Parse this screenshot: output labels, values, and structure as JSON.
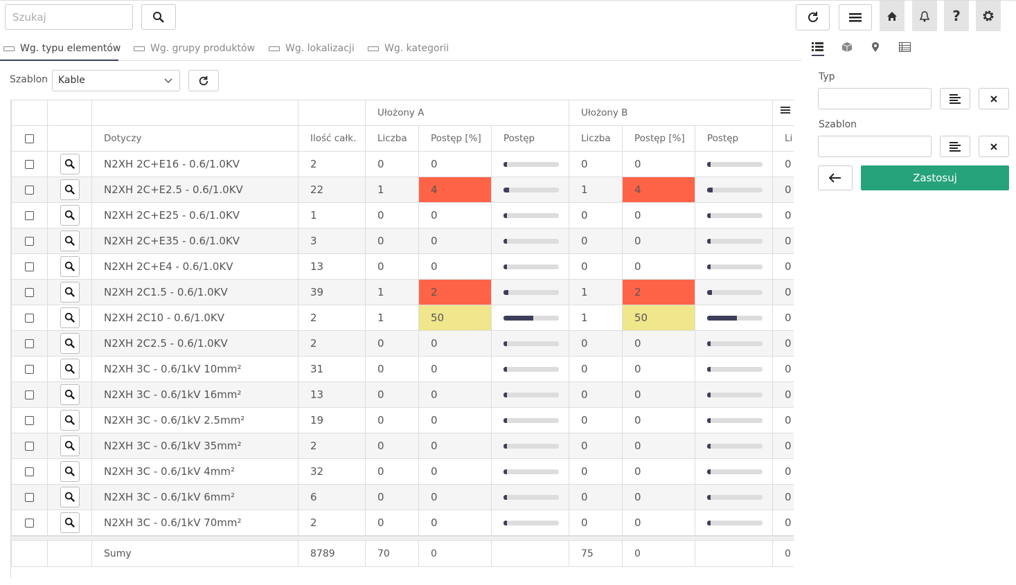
{
  "search": {
    "placeholder": "Szukaj"
  },
  "tabs": [
    "Wg. typu elementów",
    "Wg. grupy produktów",
    "Wg. lokalizacji",
    "Wg. kategorii"
  ],
  "template": {
    "label": "Szablon",
    "value": "Kable"
  },
  "table": {
    "groups": [
      "Ułożony A",
      "Ułożony B"
    ],
    "columns": [
      "Dotyczy",
      "Ilość całk.",
      "Liczba",
      "Postęp [%]",
      "Postęp",
      "Liczba",
      "Postęp [%]",
      "Postęp",
      "Li"
    ],
    "rows": [
      [
        "N2XH 2C+E16 - 0.6/1.0KV",
        2,
        0,
        0,
        0,
        0,
        0
      ],
      [
        "N2XH 2C+E2.5 - 0.6/1.0KV",
        22,
        1,
        4,
        1,
        4,
        0
      ],
      [
        "N2XH 2C+E25 - 0.6/1.0KV",
        1,
        0,
        0,
        0,
        0,
        0
      ],
      [
        "N2XH 2C+E35 - 0.6/1.0KV",
        3,
        0,
        0,
        0,
        0,
        0
      ],
      [
        "N2XH 2C+E4 - 0.6/1.0KV",
        13,
        0,
        0,
        0,
        0,
        0
      ],
      [
        "N2XH 2C1.5 - 0.6/1.0KV",
        39,
        1,
        2,
        1,
        2,
        0
      ],
      [
        "N2XH 2C10 - 0.6/1.0KV",
        2,
        1,
        50,
        1,
        50,
        0
      ],
      [
        "N2XH 2C2.5 - 0.6/1.0KV",
        2,
        0,
        0,
        0,
        0,
        0
      ],
      [
        "N2XH 3C - 0.6/1kV 10mm²",
        31,
        0,
        0,
        0,
        0,
        0
      ],
      [
        "N2XH 3C - 0.6/1kV 16mm²",
        13,
        0,
        0,
        0,
        0,
        0
      ],
      [
        "N2XH 3C - 0.6/1kV 2.5mm²",
        19,
        0,
        0,
        0,
        0,
        0
      ],
      [
        "N2XH 3C - 0.6/1kV 35mm²",
        2,
        0,
        0,
        0,
        0,
        0
      ],
      [
        "N2XH 3C - 0.6/1kV 4mm²",
        32,
        0,
        0,
        0,
        0,
        0
      ],
      [
        "N2XH 3C - 0.6/1kV 6mm²",
        6,
        0,
        0,
        0,
        0,
        0
      ],
      [
        "N2XH 3C - 0.6/1kV 70mm²",
        2,
        0,
        0,
        0,
        0,
        0
      ]
    ],
    "footer": {
      "label": "Sumy",
      "values": [
        8789,
        70,
        0,
        75,
        0,
        0
      ]
    }
  },
  "sidebar": {
    "fields": [
      "Typ",
      "Szablon"
    ],
    "apply": "Zastosuj"
  }
}
